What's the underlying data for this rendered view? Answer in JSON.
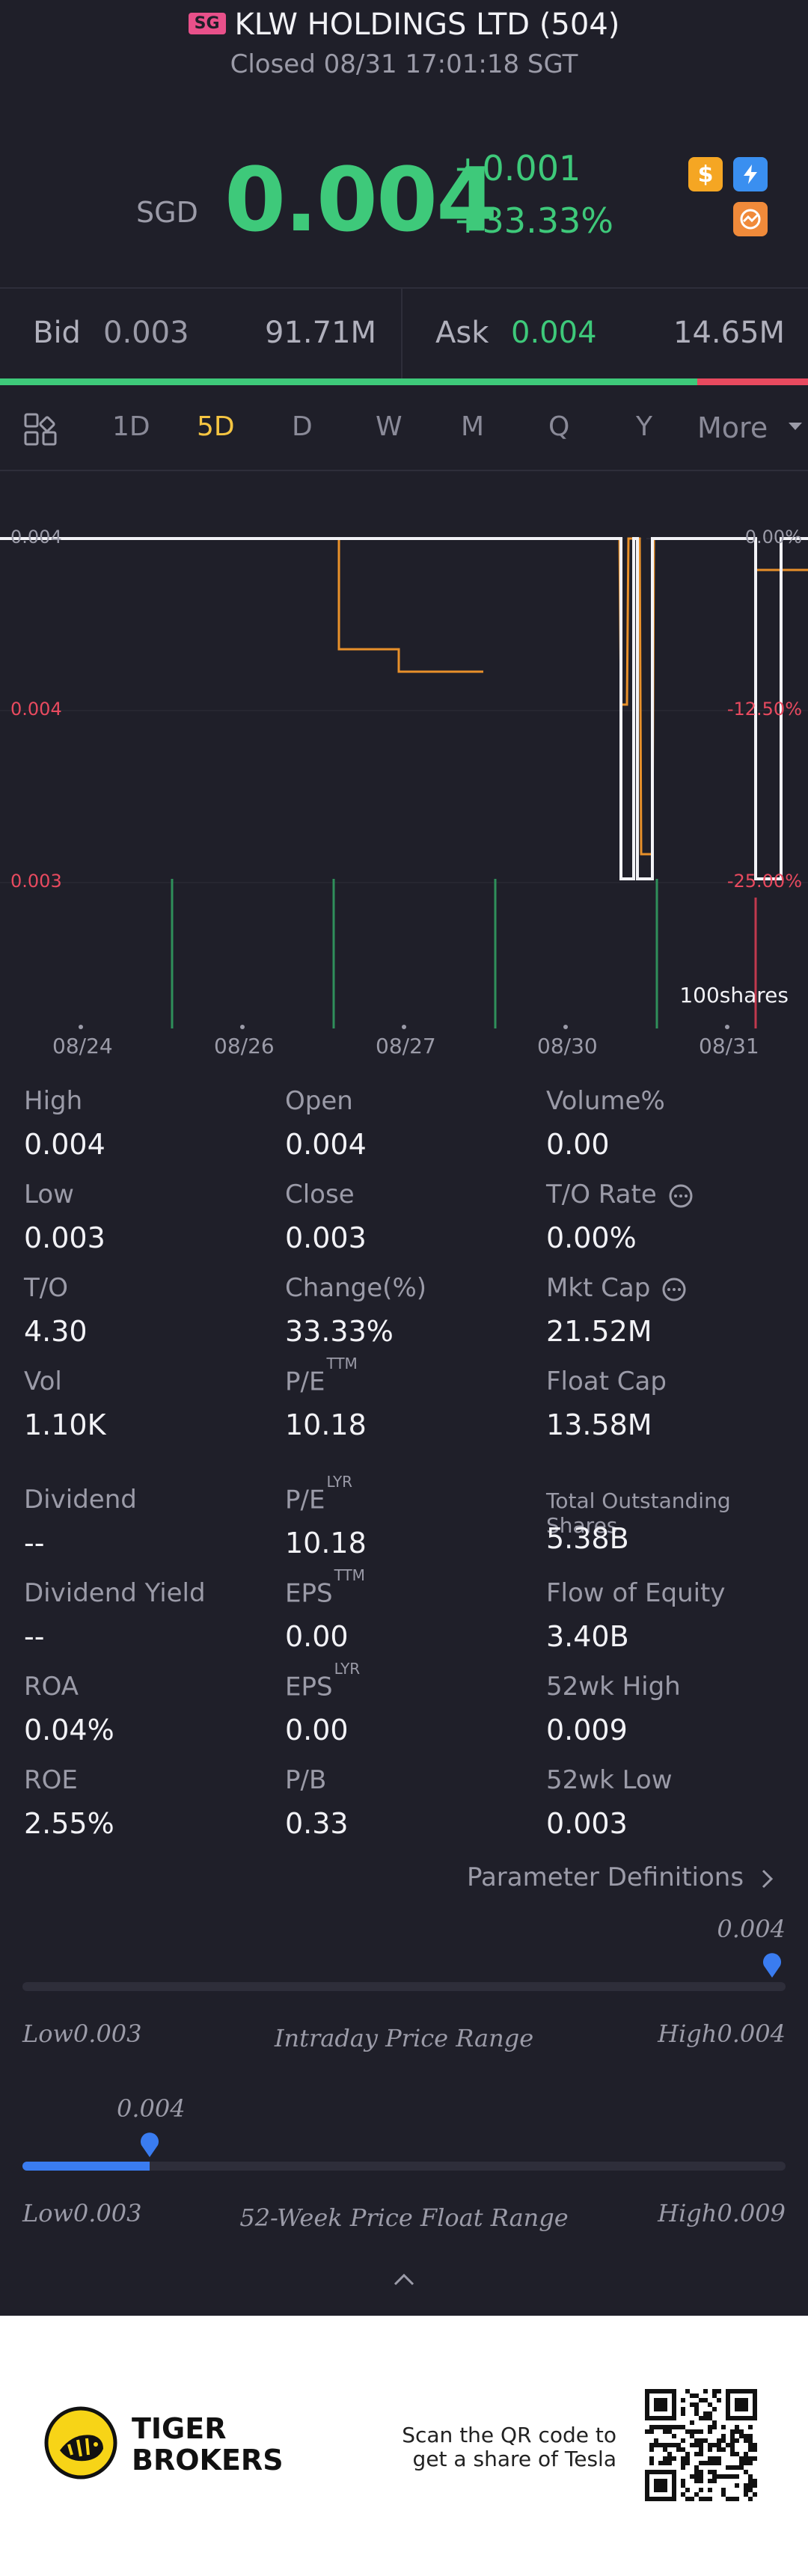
{
  "header": {
    "market_badge": "SG",
    "title": "KLW HOLDINGS LTD (504)",
    "status": "Closed 08/31 17:01:18 SGT"
  },
  "quote": {
    "currency": "SGD",
    "price": "0.004",
    "change": "+0.001",
    "change_pct": "+33.33%",
    "up_color": "#3ec97a",
    "down_color": "#e84a5f",
    "icons": [
      "dollar-icon",
      "flash-icon",
      "chart-icon"
    ]
  },
  "bid_ask": {
    "bid_label": "Bid",
    "bid_price": "0.003",
    "bid_size": "91.71M",
    "ask_label": "Ask",
    "ask_price": "0.004",
    "ask_size": "14.65M",
    "bid_ratio": 0.862
  },
  "period_tabs": {
    "items": [
      "1D",
      "5D",
      "D",
      "W",
      "M",
      "Q",
      "Y"
    ],
    "more": "More",
    "active": "5D",
    "accent": "#f5c542"
  },
  "chart": {
    "left_ticks": [
      "0.004",
      "0.004",
      "0.003"
    ],
    "right_ticks": [
      "0.00%",
      "-12.50%",
      "-25.00%"
    ],
    "x_labels": [
      "08/24",
      "08/26",
      "08/27",
      "08/30",
      "08/31"
    ],
    "volume_unit": "100shares"
  },
  "stats": {
    "rows1": [
      [
        {
          "label": "High",
          "value": "0.004"
        },
        {
          "label": "Open",
          "value": "0.004"
        },
        {
          "label": "Volume%",
          "value": "0.00"
        }
      ],
      [
        {
          "label": "Low",
          "value": "0.003"
        },
        {
          "label": "Close",
          "value": "0.003"
        },
        {
          "label": "T/O Rate",
          "value": "0.00%"
        }
      ],
      [
        {
          "label": "T/O",
          "value": "4.30"
        },
        {
          "label": "Change(%)",
          "value": "33.33%"
        },
        {
          "label": "Mkt Cap",
          "value": "21.52M"
        }
      ],
      [
        {
          "label": "Vol",
          "value": "1.10K"
        },
        {
          "label": "P/E",
          "sup": "TTM",
          "value": "10.18"
        },
        {
          "label": "Float Cap",
          "value": "13.58M"
        }
      ]
    ],
    "rows2": [
      [
        {
          "label": "Dividend",
          "value": "--"
        },
        {
          "label": "P/E",
          "sup": "LYR",
          "value": "10.18"
        },
        {
          "label": "Total Outstanding Shares",
          "value": "5.38B"
        }
      ],
      [
        {
          "label": "Dividend Yield",
          "value": "--"
        },
        {
          "label": "EPS",
          "sup": "TTM",
          "value": "0.00"
        },
        {
          "label": "Flow of Equity",
          "value": "3.40B"
        }
      ],
      [
        {
          "label": "ROA",
          "value": "0.04%"
        },
        {
          "label": "EPS",
          "sup": "LYR",
          "value": "0.00"
        },
        {
          "label": "52wk High",
          "value": "0.009"
        }
      ],
      [
        {
          "label": "ROE",
          "value": "2.55%"
        },
        {
          "label": "P/B",
          "value": "0.33"
        },
        {
          "label": "52wk Low",
          "value": "0.003"
        }
      ]
    ],
    "param_link": "Parameter Definitions"
  },
  "intraday_range": {
    "marker": "0.004",
    "low": "Low0.003",
    "title": "Intraday Price Range",
    "high": "High0.004",
    "position": 1.0
  },
  "week52_range": {
    "marker": "0.004",
    "low": "Low0.003",
    "title": "52-Week Price Float Range",
    "high": "High0.009",
    "position": 0.166
  },
  "footer": {
    "brand_line1": "TIGER",
    "brand_line2": "BROKERS",
    "cta_line1": "Scan the QR code to",
    "cta_line2": "get a share of Tesla"
  }
}
